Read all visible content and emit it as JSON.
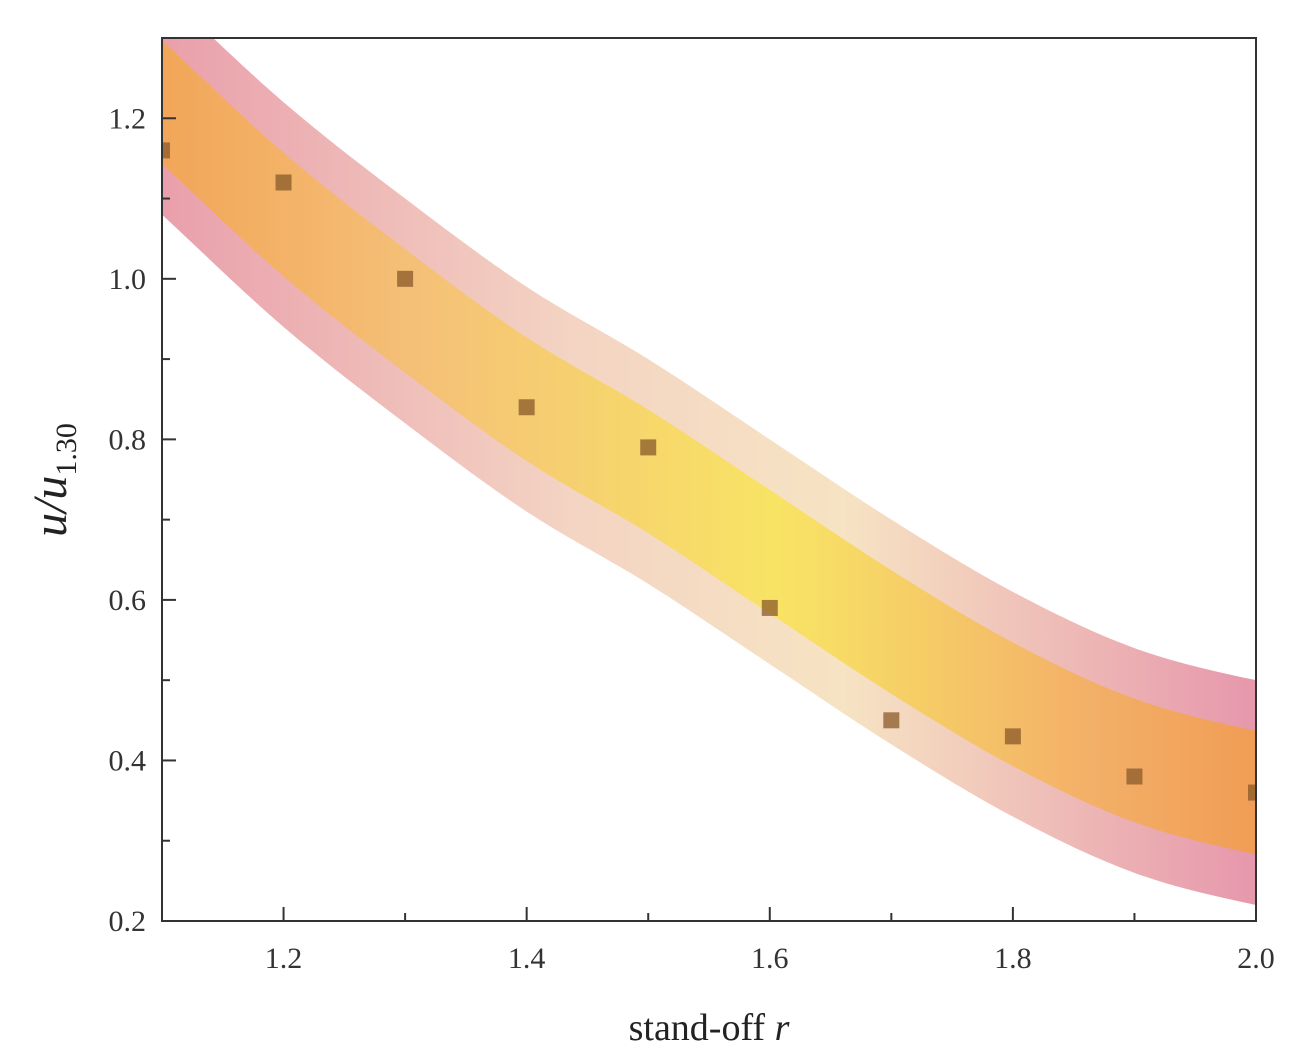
{
  "chart_data": {
    "type": "scatter",
    "title": "",
    "xlabel": "stand-off",
    "xlabel_var": "r",
    "ylabel_main": "u/u",
    "ylabel_sub": "1.30",
    "xlim": [
      1.1,
      2.0
    ],
    "ylim": [
      0.2,
      1.3
    ],
    "x_ticks": [
      1.2,
      1.4,
      1.6,
      1.8,
      2.0
    ],
    "x_tick_labels": [
      "1.2",
      "1.4",
      "1.6",
      "1.8",
      "2.0"
    ],
    "y_ticks": [
      0.2,
      0.4,
      0.6,
      0.8,
      1.0,
      1.2
    ],
    "y_tick_labels": [
      "0.2",
      "0.4",
      "0.6",
      "0.8",
      "1.0",
      "1.2"
    ],
    "grid": false,
    "legend": false,
    "series": [
      {
        "x": [
          1.1,
          1.2,
          1.3,
          1.4,
          1.5,
          1.6,
          1.7,
          1.8,
          1.9,
          2.0
        ],
        "y": [
          1.16,
          1.12,
          1.0,
          0.84,
          0.79,
          0.59,
          0.45,
          0.43,
          0.38,
          0.36
        ]
      }
    ],
    "band": {
      "x": [
        1.1,
        1.2,
        1.3,
        1.4,
        1.5,
        1.6,
        1.7,
        1.8,
        1.9,
        2.0
      ],
      "center": [
        1.22,
        1.08,
        0.96,
        0.85,
        0.76,
        0.66,
        0.56,
        0.47,
        0.4,
        0.36
      ],
      "halfwidth": 0.14
    },
    "colors": {
      "marker": "#8a5a2a",
      "band_inner": "#f5e050",
      "band_edge": "#e07aa0",
      "band_end": "#f29a40",
      "axis": "#333333"
    }
  }
}
